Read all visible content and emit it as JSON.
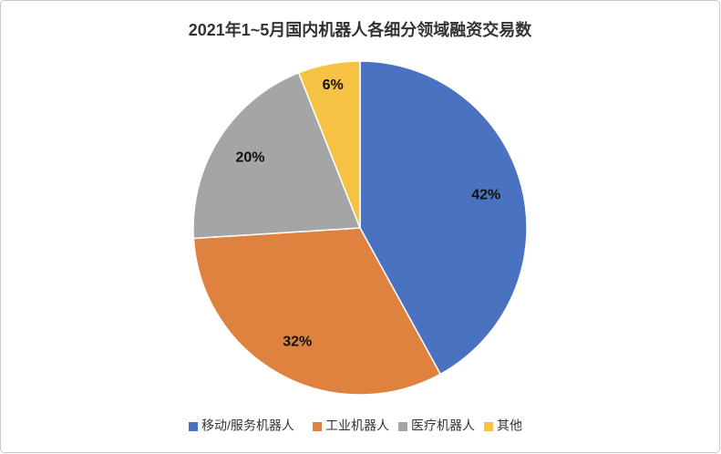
{
  "chart_data": {
    "type": "pie",
    "title": "2021年1~5月国内机器人各细分领域融资交易数",
    "categories": [
      "移动/服务机器人",
      "工业机器人",
      "医疗机器人",
      "其他"
    ],
    "values": [
      42,
      32,
      20,
      6
    ],
    "value_labels": [
      "42%",
      "32%",
      "20%",
      "6%"
    ],
    "colors": [
      "#4a72c0",
      "#e0823f",
      "#a5a5a5",
      "#f5c243"
    ],
    "legend": "bottom"
  }
}
